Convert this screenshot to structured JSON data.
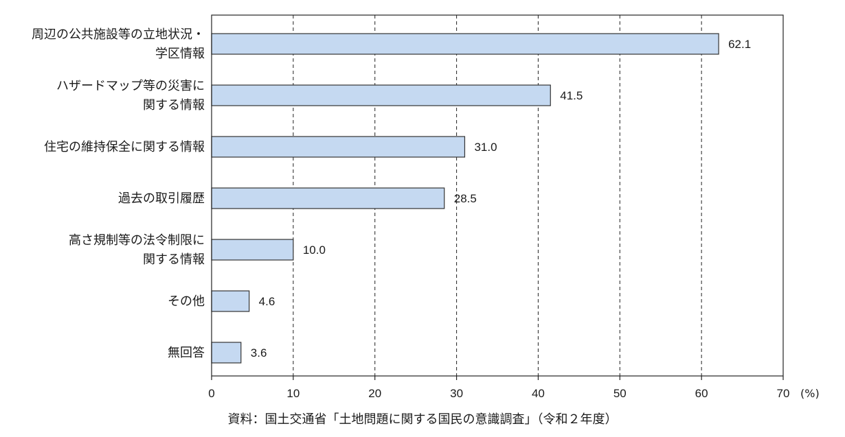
{
  "chart_data": {
    "type": "bar",
    "orientation": "horizontal",
    "categories": [
      [
        "周辺の公共施設等の立地状況・",
        "学区情報"
      ],
      [
        "ハザードマップ等の災害に",
        "関する情報"
      ],
      [
        "住宅の維持保全に関する情報"
      ],
      [
        "過去の取引履歴"
      ],
      [
        "高さ規制等の法令制限に",
        "関する情報"
      ],
      [
        "その他"
      ],
      [
        "無回答"
      ]
    ],
    "values": [
      62.1,
      41.5,
      31.0,
      28.5,
      10.0,
      4.6,
      3.6
    ],
    "value_labels": [
      "62.1",
      "41.5",
      "31.0",
      "28.5",
      "10.0",
      "4.6",
      "3.6"
    ],
    "xlim": [
      0,
      70
    ],
    "xticks": [
      0,
      10,
      20,
      30,
      40,
      50,
      60,
      70
    ],
    "xunit": "(%)",
    "grid": "vertical dashed",
    "bar_color": "#c5d9f1",
    "bar_edge_color": "#333333",
    "source": "資料：国土交通省「土地問題に関する国民の意識調査」（令和２年度）"
  }
}
